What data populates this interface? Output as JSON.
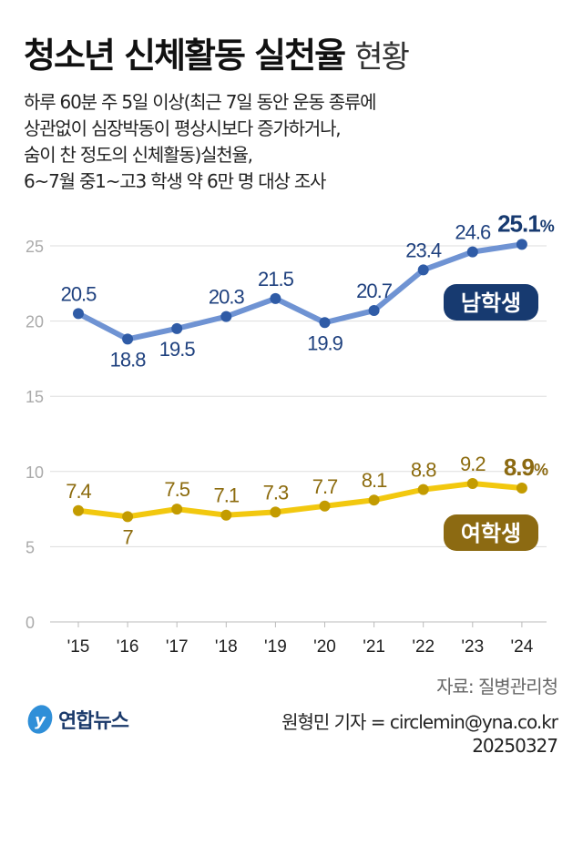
{
  "title": {
    "main": "청소년 신체활동 실천율",
    "light": "현황"
  },
  "subtitle": [
    "하루 60분 주 5일 이상(최근 7일 동안 운동 종류에",
    "상관없이 심장박동이 평상시보다 증가하거나,",
    "숨이 찬 정도의 신체활동)실천율,",
    "6~7월 중1~고3 학생 약 6만 명 대상 조사"
  ],
  "source": "자료: 질병관리청",
  "credit": "원형민 기자 = circlemin@yna.co.kr",
  "date": "20250327",
  "logo": "연합뉴스",
  "chart_data": {
    "type": "line",
    "categories": [
      "'15",
      "'16",
      "'17",
      "'18",
      "'19",
      "'20",
      "'21",
      "'22",
      "'23",
      "'24"
    ],
    "yticks": [
      0,
      5,
      10,
      15,
      20,
      25
    ],
    "ylim": [
      0,
      25
    ],
    "grid": true,
    "series": [
      {
        "name": "남학생",
        "values": [
          20.5,
          18.8,
          19.5,
          20.3,
          21.5,
          19.9,
          20.7,
          23.4,
          24.6,
          25.1
        ],
        "line_color": "#6F93D3",
        "dot_color": "#2F5BA6",
        "label_color": "#1E407E",
        "badge_color": "#173A70"
      },
      {
        "name": "여학생",
        "values": [
          7.4,
          7.0,
          7.5,
          7.1,
          7.3,
          7.7,
          8.1,
          8.8,
          9.2,
          8.9
        ],
        "line_color": "#F2C80F",
        "dot_color": "#C39B00",
        "label_color": "#8C6B0E",
        "badge_color": "#8C6A12"
      }
    ],
    "last_value_unit": "%"
  }
}
